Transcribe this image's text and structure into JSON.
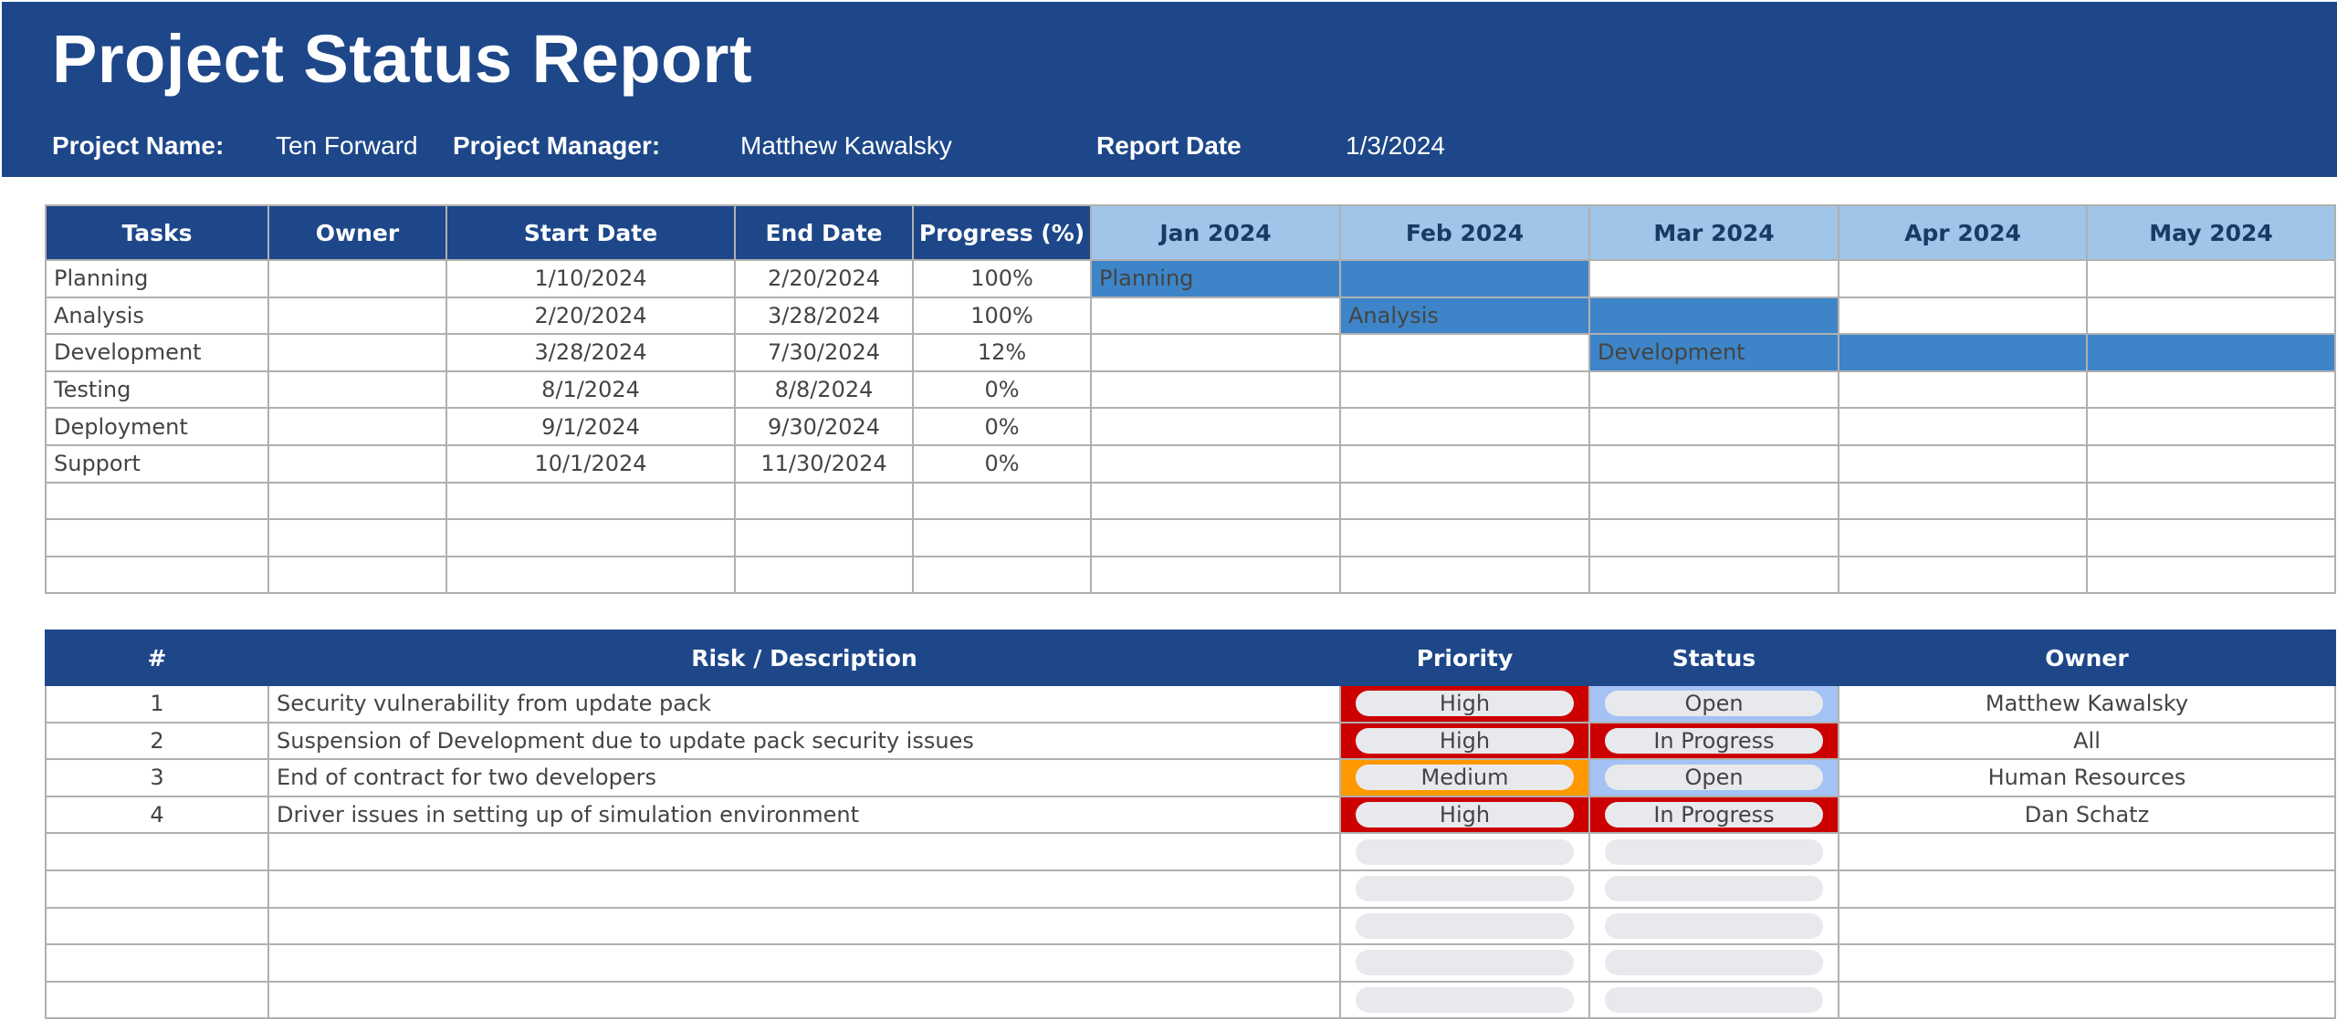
{
  "header": {
    "title": "Project Status Report",
    "project_name_label": "Project Name:",
    "project_name": "Ten Forward",
    "project_manager_label": "Project Manager:",
    "project_manager": "Matthew Kawalsky",
    "report_date_label": "Report Date",
    "report_date": "1/3/2024"
  },
  "tasks_table": {
    "columns": [
      "Tasks",
      "Owner",
      "Start Date",
      "End Date",
      "Progress (%)"
    ],
    "months": [
      "Jan 2024",
      "Feb 2024",
      "Mar 2024",
      "Apr 2024",
      "May 2024"
    ],
    "rows": [
      {
        "task": "Planning",
        "owner": "",
        "start": "1/10/2024",
        "end": "2/20/2024",
        "progress": "100%",
        "gantt": [
          1,
          1,
          0,
          0,
          0
        ]
      },
      {
        "task": "Analysis",
        "owner": "",
        "start": "2/20/2024",
        "end": "3/28/2024",
        "progress": "100%",
        "gantt": [
          0,
          1,
          1,
          0,
          0
        ]
      },
      {
        "task": "Development",
        "owner": "",
        "start": "3/28/2024",
        "end": "7/30/2024",
        "progress": "12%",
        "gantt": [
          0,
          0,
          1,
          1,
          1
        ]
      },
      {
        "task": "Testing",
        "owner": "",
        "start": "8/1/2024",
        "end": "8/8/2024",
        "progress": "0%",
        "gantt": [
          0,
          0,
          0,
          0,
          0
        ]
      },
      {
        "task": "Deployment",
        "owner": "",
        "start": "9/1/2024",
        "end": "9/30/2024",
        "progress": "0%",
        "gantt": [
          0,
          0,
          0,
          0,
          0
        ]
      },
      {
        "task": "Support",
        "owner": "",
        "start": "10/1/2024",
        "end": "11/30/2024",
        "progress": "0%",
        "gantt": [
          0,
          0,
          0,
          0,
          0
        ]
      }
    ],
    "empty_rows": 3
  },
  "risk_table": {
    "columns": [
      "#",
      "Risk / Description",
      "Priority",
      "Status",
      "Owner"
    ],
    "rows": [
      {
        "num": "1",
        "description": "Security vulnerability from update pack",
        "priority": "High",
        "status": "Open",
        "owner": "Matthew Kawalsky"
      },
      {
        "num": "2",
        "description": "Suspension of Development due to update pack security issues",
        "priority": "High",
        "status": "In Progress",
        "owner": "All"
      },
      {
        "num": "3",
        "description": "End of contract for two developers",
        "priority": "Medium",
        "status": "Open",
        "owner": "Human Resources"
      },
      {
        "num": "4",
        "description": "Driver issues in setting up of simulation environment",
        "priority": "High",
        "status": "In Progress",
        "owner": "Dan Schatz"
      }
    ],
    "empty_rows": 5
  },
  "colors": {
    "header_bg": "#1d4789",
    "month_header_bg": "#9fc5e8",
    "gantt_bar": "#3d85c8",
    "priority_high": "#cc0000",
    "priority_medium": "#ff9900",
    "status_open": "#a4c2f4",
    "status_in_progress": "#cc0000",
    "pill_bg": "#e8e9ed"
  }
}
